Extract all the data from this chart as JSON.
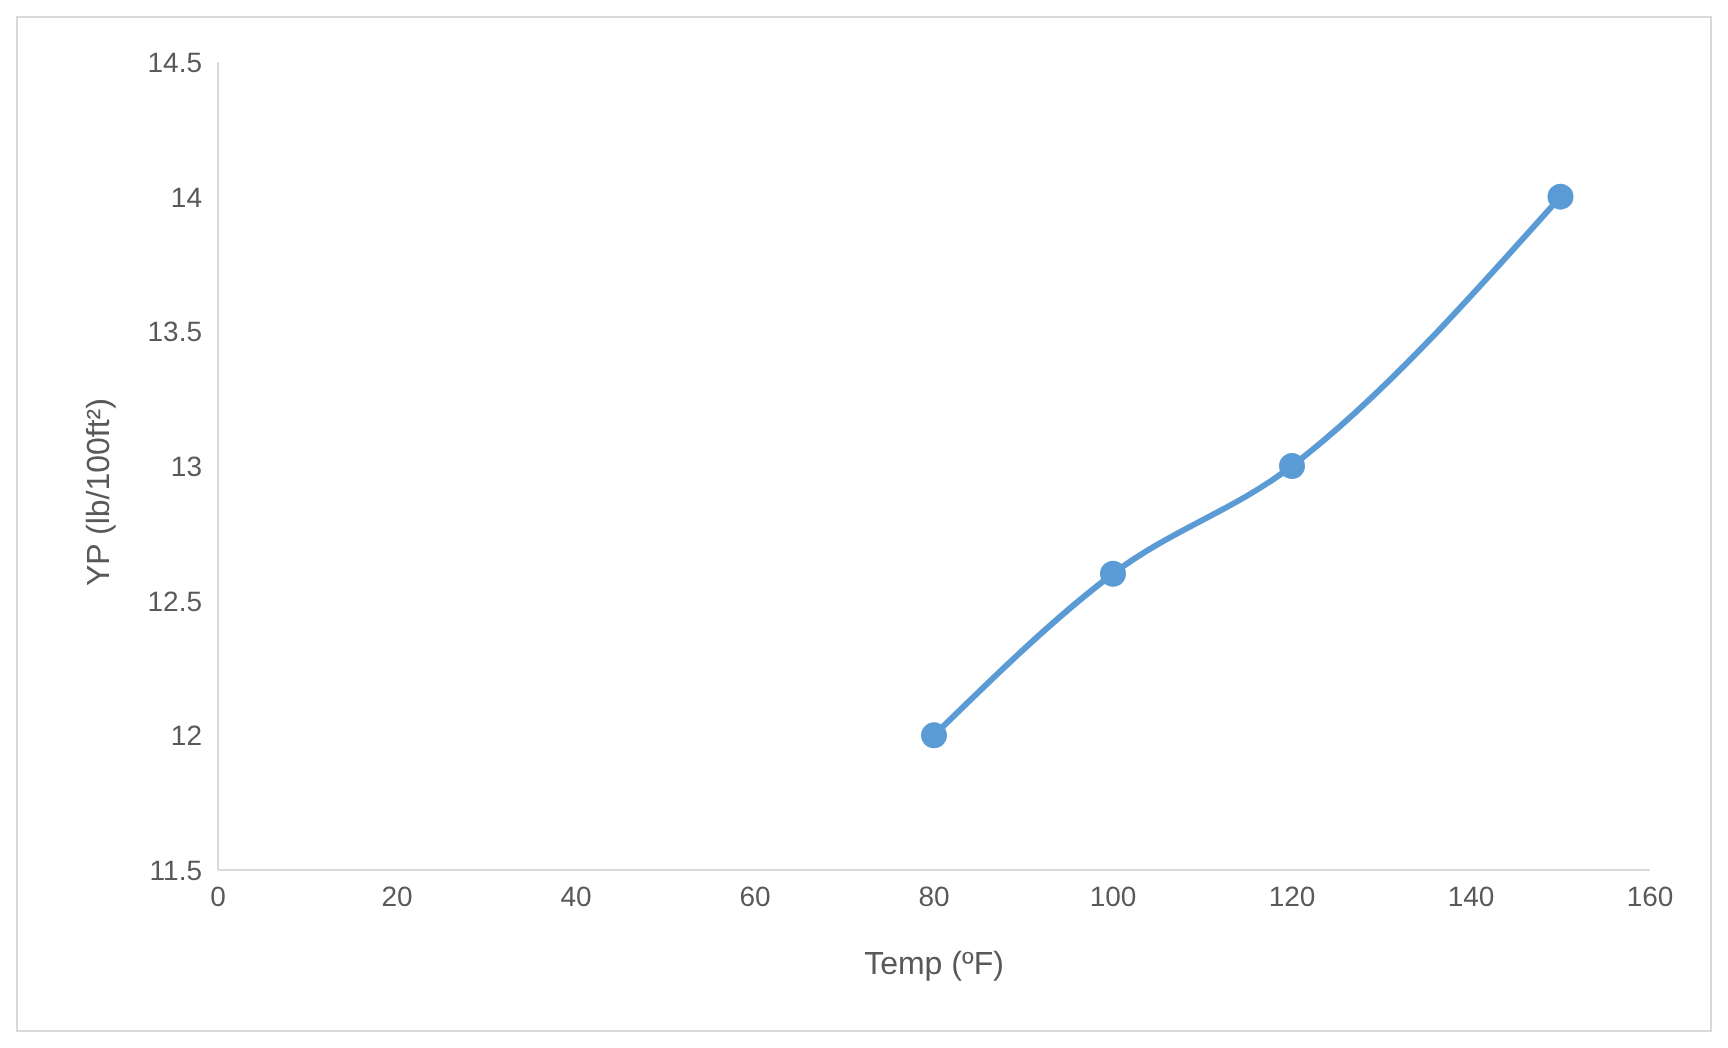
{
  "chart_data": {
    "type": "line",
    "xlabel": "Temp (ºF)",
    "ylabel": "YP (lb/100ft²)",
    "x": [
      80,
      100,
      120,
      150
    ],
    "series": [
      {
        "color": "#5b9bd5",
        "values": [
          12,
          12.6,
          13,
          14
        ]
      }
    ],
    "xlim": [
      0,
      160
    ],
    "xticks": [
      0,
      20,
      40,
      60,
      80,
      100,
      120,
      140,
      160
    ],
    "ylim": [
      11.5,
      14.5
    ],
    "yticks": [
      11.5,
      12,
      12.5,
      13,
      13.5,
      14,
      14.5
    ],
    "grid": false,
    "legend": false,
    "marker": "circle",
    "line_style": "solid"
  }
}
